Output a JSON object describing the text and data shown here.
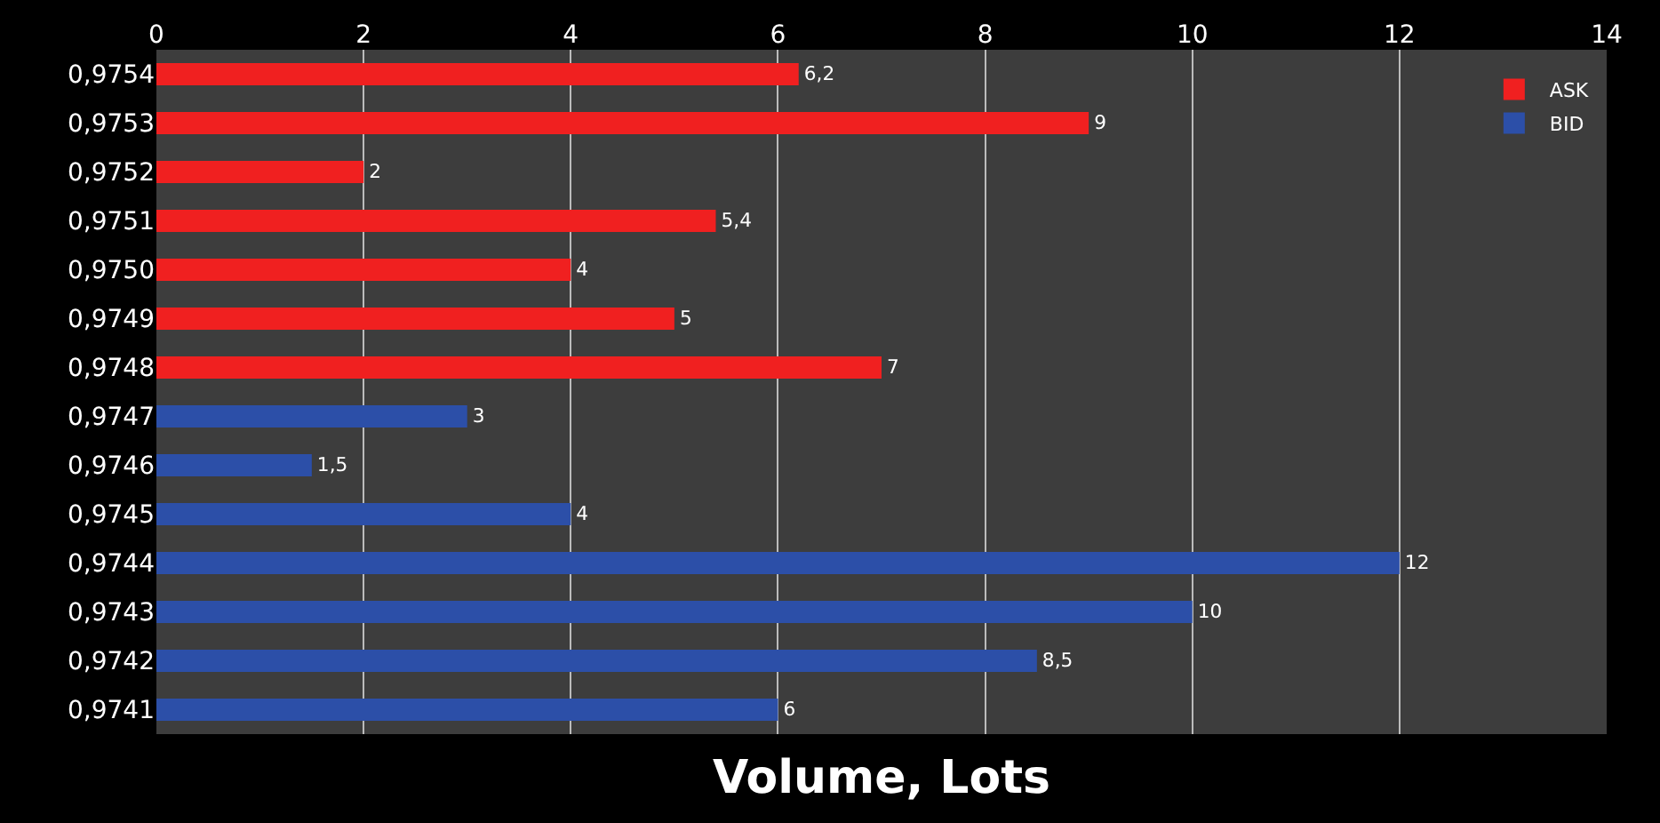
{
  "chart_data": {
    "type": "bar",
    "orientation": "horizontal",
    "xlabel": "Volume, Lots",
    "categories": [
      "0,9754",
      "0,9753",
      "0,9752",
      "0,9751",
      "0,9750",
      "0,9749",
      "0,9748",
      "0,9747",
      "0,9746",
      "0,9745",
      "0,9744",
      "0,9743",
      "0,9742",
      "0,9741"
    ],
    "series": [
      {
        "name": "ASK",
        "color": "#f02020",
        "values": [
          6.2,
          9,
          2,
          5.4,
          4,
          5,
          7,
          null,
          null,
          null,
          null,
          null,
          null,
          null
        ],
        "value_labels": [
          "6,2",
          "9",
          "2",
          "5,4",
          "4",
          "5",
          "7",
          null,
          null,
          null,
          null,
          null,
          null,
          null
        ]
      },
      {
        "name": "BID",
        "color": "#2c4fa8",
        "values": [
          null,
          null,
          null,
          null,
          null,
          null,
          null,
          3,
          1.5,
          4,
          12,
          10,
          8.5,
          6
        ],
        "value_labels": [
          null,
          null,
          null,
          null,
          null,
          null,
          null,
          "3",
          "1,5",
          "4",
          "12",
          "10",
          "8,5",
          "6"
        ]
      }
    ],
    "xlim": [
      0,
      14
    ],
    "xticks": [
      0,
      2,
      4,
      6,
      8,
      10,
      12,
      14
    ],
    "grid": "x",
    "legend": "top right"
  }
}
